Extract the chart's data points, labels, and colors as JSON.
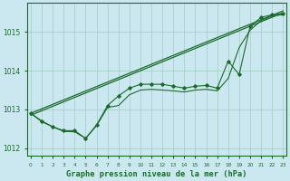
{
  "title": "Graphe pression niveau de la mer (hPa)",
  "background_color": "#cbe8f0",
  "grid_color": "#a0ccc0",
  "line_color": "#1a6b2a",
  "x_ticks": [
    0,
    1,
    2,
    3,
    4,
    5,
    6,
    7,
    8,
    9,
    10,
    11,
    12,
    13,
    14,
    15,
    16,
    17,
    18,
    19,
    20,
    21,
    22,
    23
  ],
  "y_ticks": [
    1012,
    1013,
    1014,
    1015
  ],
  "ylim": [
    1011.8,
    1015.75
  ],
  "xlim": [
    -0.3,
    23.3
  ],
  "line_zigzag": [
    1012.9,
    1012.7,
    1012.55,
    1012.45,
    1012.45,
    1012.25,
    1012.6,
    1013.1,
    1013.35,
    1013.55,
    1013.65,
    1013.65,
    1013.65,
    1013.6,
    1013.55,
    1013.6,
    1013.62,
    1013.55,
    1014.25,
    1013.9,
    1015.15,
    1015.38,
    1015.45,
    1015.48
  ],
  "line_lower": [
    1012.9,
    1012.68,
    1012.55,
    1012.43,
    1012.42,
    1012.25,
    1012.58,
    1013.05,
    1013.1,
    1013.38,
    1013.5,
    1013.52,
    1013.5,
    1013.48,
    1013.45,
    1013.5,
    1013.52,
    1013.48,
    1013.8,
    1014.6,
    1015.05,
    1015.3,
    1015.42,
    1015.45
  ]
}
